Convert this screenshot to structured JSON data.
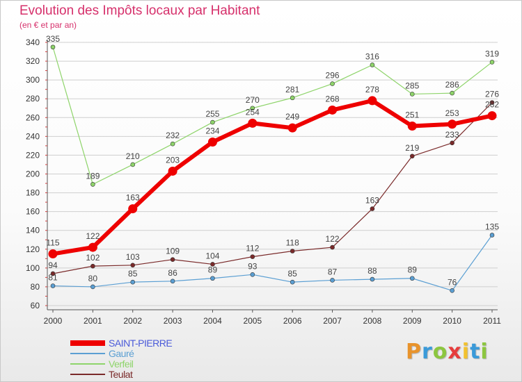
{
  "header": {
    "title": "Evolution des Impôts locaux par Habitant",
    "subtitle": "(en € et par an)"
  },
  "logo": {
    "text": "Proxiti",
    "letters": [
      "P",
      "r",
      "o",
      "x",
      "i",
      "t",
      "i"
    ],
    "letter_colors": [
      "#e8932b",
      "#3a9ad9",
      "#8cc63f",
      "#e63d3d",
      "#f2c12e",
      "#3a9ad9",
      "#8cc63f"
    ]
  },
  "colors": {
    "title": "#d6306b",
    "grid": "#cfcfcf",
    "axis": "#555555",
    "tick_label": "#333333",
    "data_label": "#444444",
    "legend_highlight": "#4a5ad9"
  },
  "chart_data": {
    "type": "line",
    "title": "Evolution des Impôts locaux par Habitant",
    "subtitle": "(en € et par an)",
    "xlabel": "",
    "ylabel": "",
    "x": [
      "2000",
      "2001",
      "2002",
      "2003",
      "2004",
      "2005",
      "2006",
      "2007",
      "2008",
      "2009",
      "2010",
      "2011"
    ],
    "ylim": [
      60,
      340
    ],
    "yticks": [
      60,
      80,
      100,
      120,
      140,
      160,
      180,
      200,
      220,
      240,
      260,
      280,
      300,
      320,
      340
    ],
    "grid": "horizontal",
    "legend_position": "bottom-left",
    "series": [
      {
        "name": "SAINT-PIERRE",
        "color": "#ee0000",
        "emphasis": true,
        "values": [
          115,
          122,
          163,
          203,
          234,
          254,
          249,
          268,
          278,
          251,
          253,
          262
        ]
      },
      {
        "name": "Gauré",
        "color": "#5b9fd3",
        "emphasis": false,
        "values": [
          81,
          80,
          85,
          86,
          89,
          93,
          85,
          87,
          88,
          89,
          76,
          135
        ]
      },
      {
        "name": "Verfeil",
        "color": "#8ed46a",
        "emphasis": false,
        "values": [
          335,
          189,
          210,
          232,
          255,
          270,
          281,
          296,
          316,
          285,
          286,
          319
        ]
      },
      {
        "name": "Teulat",
        "color": "#7a2a2a",
        "emphasis": false,
        "values": [
          94,
          102,
          103,
          109,
          104,
          112,
          118,
          122,
          163,
          219,
          233,
          276
        ]
      }
    ]
  }
}
